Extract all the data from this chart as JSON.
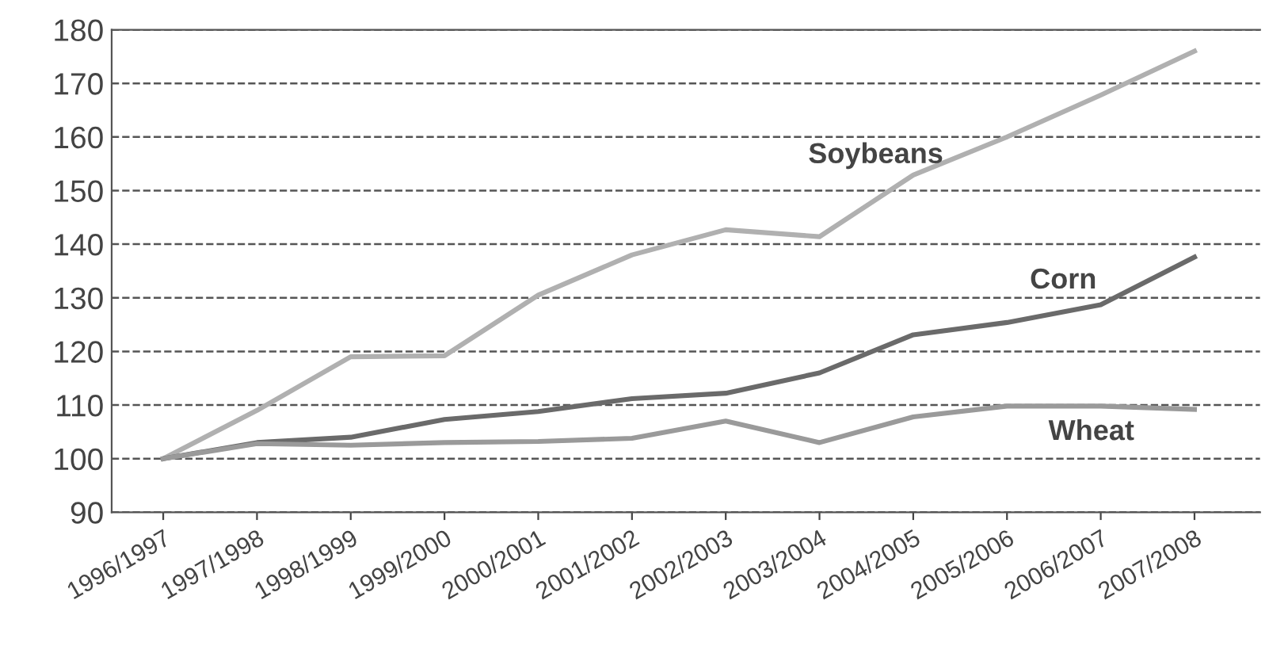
{
  "chart_data": {
    "type": "line",
    "categories": [
      "1996/1997",
      "1997/1998",
      "1998/1999",
      "1999/2000",
      "2000/2001",
      "2001/2002",
      "2002/2003",
      "2003/2004",
      "2004/2005",
      "2005/2006",
      "2006/2007",
      "2007/2008"
    ],
    "series": [
      {
        "name": "Soybeans",
        "color": "#b0b0b0",
        "values": [
          100,
          109,
          119,
          119.2,
          130.5,
          138,
          142.7,
          141.4,
          152.9,
          160,
          167.8,
          176
        ]
      },
      {
        "name": "Corn",
        "color": "#6a6a6a",
        "values": [
          100,
          103,
          104,
          107.3,
          108.8,
          111.2,
          112.2,
          116,
          123.1,
          125.4,
          128.7,
          137.6
        ]
      },
      {
        "name": "Wheat",
        "color": "#9a9a9a",
        "values": [
          100,
          102.8,
          102.5,
          103,
          103.2,
          103.8,
          107,
          103,
          107.8,
          109.8,
          109.8,
          109.2
        ]
      }
    ],
    "ylim": [
      90,
      180
    ],
    "yticks": [
      90,
      100,
      110,
      120,
      130,
      140,
      150,
      160,
      170,
      180
    ],
    "grid": "y",
    "line_style": "solid",
    "marker": "none"
  }
}
